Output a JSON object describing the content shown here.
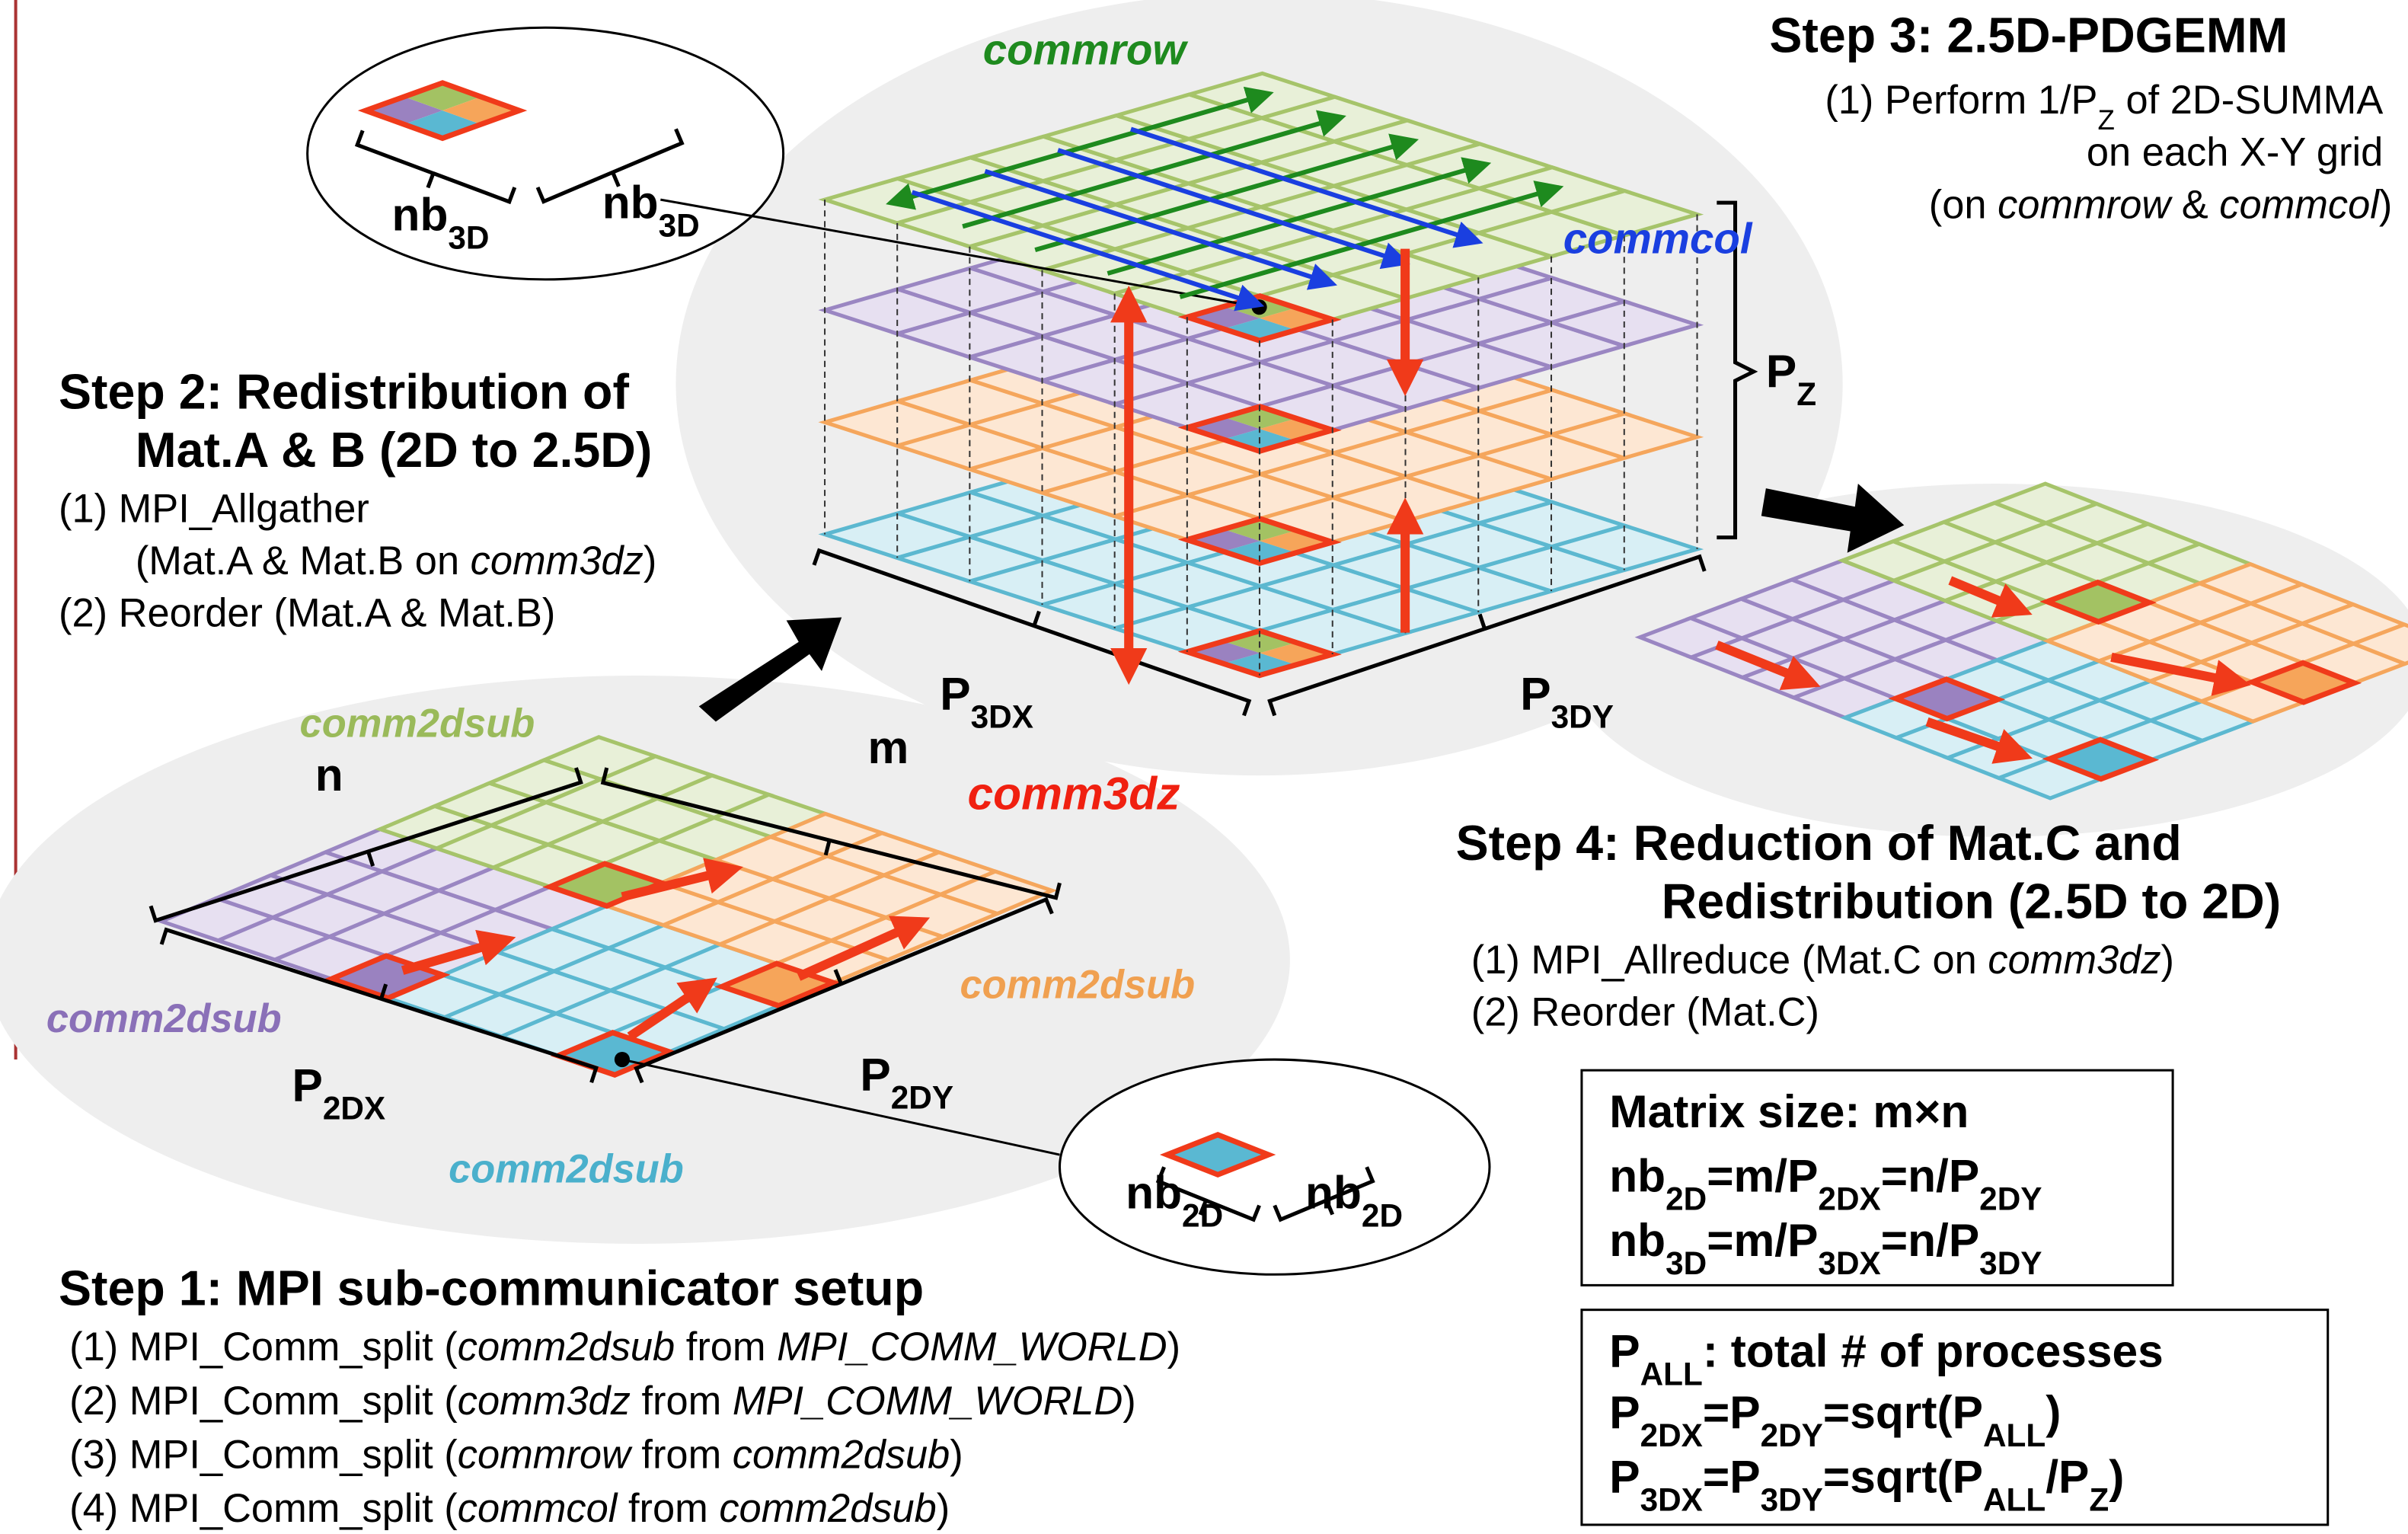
{
  "step1": {
    "title": "Step 1: MPI sub-communicator setup",
    "items": [
      [
        "(1) MPI_Comm_split (",
        {
          "i": "comm2dsub"
        },
        " from ",
        {
          "i": "MPI_COMM_WORLD"
        },
        ")"
      ],
      [
        "(2) MPI_Comm_split (",
        {
          "i": "comm3dz"
        },
        " from ",
        {
          "i": "MPI_COMM_WORLD"
        },
        ")"
      ],
      [
        "(3) MPI_Comm_split (",
        {
          "i": "commrow"
        },
        " from ",
        {
          "i": "comm2dsub"
        },
        ")"
      ],
      [
        "(4) MPI_Comm_split (",
        {
          "i": "commcol"
        },
        " from ",
        {
          "i": "comm2dsub"
        },
        ")"
      ]
    ]
  },
  "step2": {
    "title": [
      "Step 2: Redistribution of",
      "Mat.A & B (2D to 2.5D)"
    ],
    "items": [
      [
        "(1) MPI_Allgather"
      ],
      [
        "(Mat.A & Mat.B on ",
        {
          "i": "comm3dz"
        },
        ")"
      ],
      [
        "(2) Reorder (Mat.A & Mat.B)"
      ]
    ]
  },
  "step3": {
    "title": "Step 3: 2.5D-PDGEMM",
    "items": [
      [
        "(1) Perform 1/P",
        {
          "sub": "Z"
        },
        " of 2D-SUMMA"
      ],
      [
        "on each X-Y grid"
      ],
      [
        "(on ",
        {
          "i": "commrow"
        },
        " & ",
        {
          "i": "commcol"
        },
        ")"
      ]
    ]
  },
  "step4": {
    "title": [
      "Step 4: Reduction of Mat.C and",
      "Redistribution (2.5D to 2D)"
    ],
    "items": [
      [
        "(1) MPI_Allreduce (Mat.C on ",
        {
          "i": "comm3dz"
        },
        ")"
      ],
      [
        "(2) Reorder (Mat.C)"
      ]
    ]
  },
  "labels": {
    "commrow": "commrow",
    "commcol": "commcol",
    "comm3dz": "comm3dz",
    "comm2dsub_green": "comm2dsub",
    "comm2dsub_purple": "comm2dsub",
    "comm2dsub_orange": "comm2dsub",
    "comm2dsub_blue": "comm2dsub",
    "n": "n",
    "m": "m",
    "p2dx": [
      "P",
      {
        "sub": "2DX"
      }
    ],
    "p2dy": [
      "P",
      {
        "sub": "2DY"
      }
    ],
    "p3dx": [
      "P",
      {
        "sub": "3DX"
      }
    ],
    "p3dy": [
      "P",
      {
        "sub": "3DY"
      }
    ],
    "pz": [
      "P",
      {
        "sub": "Z"
      }
    ],
    "nb3d_left": [
      "nb",
      {
        "sub": "3D"
      }
    ],
    "nb3d_right": [
      "nb",
      {
        "sub": "3D"
      }
    ],
    "nb2d_left": [
      "nb",
      {
        "sub": "2D"
      }
    ],
    "nb2d_right": [
      "nb",
      {
        "sub": "2D"
      }
    ]
  },
  "matrix_box": [
    [
      "Matrix size: m×n"
    ],
    [
      "nb",
      {
        "sub": "2D"
      },
      "=m/P",
      {
        "sub": "2DX"
      },
      "=n/P",
      {
        "sub": "2DY"
      }
    ],
    [
      "nb",
      {
        "sub": "3D"
      },
      "=m/P",
      {
        "sub": "3DX"
      },
      "=n/P",
      {
        "sub": "3DY"
      }
    ]
  ],
  "process_box": [
    [
      "P",
      {
        "sub": "ALL"
      },
      ": total # of processes"
    ],
    [
      "P",
      {
        "sub": "2DX"
      },
      "=P",
      {
        "sub": "2DY"
      },
      "=sqrt(P",
      {
        "sub": "ALL"
      },
      ")"
    ],
    [
      "P",
      {
        "sub": "3DX"
      },
      "=P",
      {
        "sub": "3DY"
      },
      "=sqrt(P",
      {
        "sub": "ALL"
      },
      "/P",
      {
        "sub": "Z"
      },
      ")"
    ]
  ]
}
